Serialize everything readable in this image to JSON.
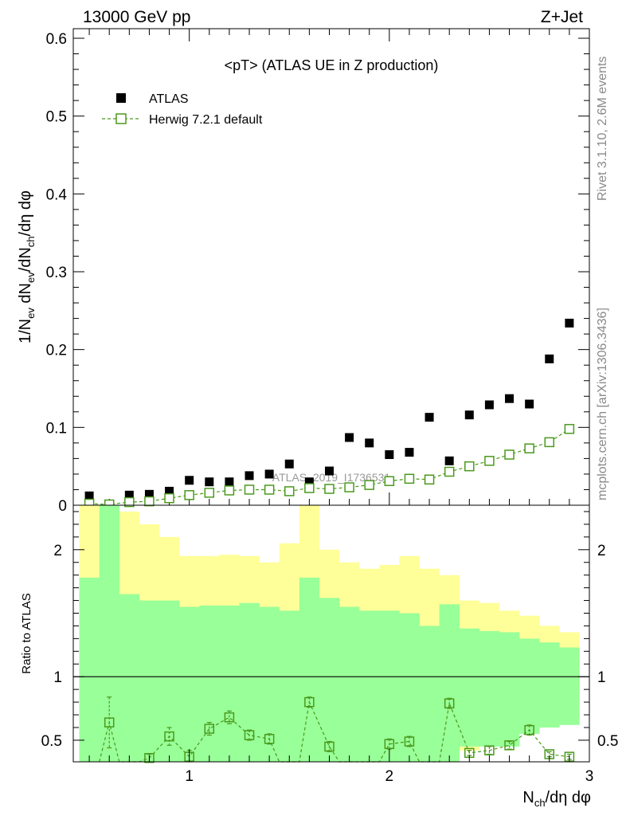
{
  "header": {
    "left": "13000 GeV pp",
    "right": "Z+Jet"
  },
  "side_labels": {
    "rivet": "Rivet 3.1.10,  2.6M events",
    "mcplots": "mcplots.cern.ch [arXiv:1306.3436]"
  },
  "watermark": "ATLAS_2019_I1736531",
  "chart_data": [
    {
      "type": "scatter",
      "title": "<pT> (ATLAS UE in Z production)",
      "ylabel": "1/N_ev dN_ev/dN_ch/dη dφ",
      "xlim": [
        0.42,
        3.0
      ],
      "ylim": [
        0,
        0.6
      ],
      "yticks": [
        0,
        0.1,
        0.2,
        0.3,
        0.4,
        0.5,
        0.6
      ],
      "ytick_labels": [
        "0",
        "0.1",
        "0.2",
        "0.3",
        "0.4",
        "0.5",
        "0.6"
      ],
      "legend_position": "top-left",
      "series": [
        {
          "name": "ATLAS",
          "marker": "filled-square",
          "color": "#000000",
          "x": [
            0.5,
            0.6,
            0.7,
            0.8,
            0.9,
            1.0,
            1.1,
            1.2,
            1.3,
            1.4,
            1.5,
            1.6,
            1.7,
            1.8,
            1.9,
            2.0,
            2.1,
            2.2,
            2.3,
            2.4,
            2.5,
            2.6,
            2.7,
            2.8,
            2.9
          ],
          "y": [
            0.012,
            0.0005,
            0.013,
            0.014,
            0.018,
            0.032,
            0.03,
            0.03,
            0.038,
            0.04,
            0.053,
            0.03,
            0.044,
            0.087,
            0.08,
            0.065,
            0.068,
            0.113,
            0.057,
            0.116,
            0.129,
            0.137,
            0.13,
            0.188,
            0.234
          ]
        },
        {
          "name": "Herwig 7.2.1 default",
          "marker": "open-square",
          "line": "dashed",
          "color": "#4a9a1c",
          "x": [
            0.5,
            0.6,
            0.7,
            0.8,
            0.9,
            1.0,
            1.1,
            1.2,
            1.3,
            1.4,
            1.5,
            1.6,
            1.7,
            1.8,
            1.9,
            2.0,
            2.1,
            2.2,
            2.3,
            2.4,
            2.5,
            2.6,
            2.7,
            2.8,
            2.9
          ],
          "y": [
            0.002,
            0.001,
            0.004,
            0.005,
            0.009,
            0.013,
            0.016,
            0.019,
            0.02,
            0.02,
            0.018,
            0.022,
            0.021,
            0.023,
            0.026,
            0.031,
            0.034,
            0.033,
            0.043,
            0.05,
            0.057,
            0.065,
            0.073,
            0.081,
            0.098
          ]
        }
      ]
    },
    {
      "type": "scatter",
      "ylabel": "Ratio to ATLAS",
      "xlabel": "N_ch/dη dφ",
      "xlim": [
        0.42,
        3.0
      ],
      "ylim": [
        0.33,
        2.35
      ],
      "xticks": [
        1,
        2,
        3
      ],
      "xtick_labels": [
        "1",
        "2",
        "3"
      ],
      "yticks": [
        0.5,
        1,
        2
      ],
      "ytick_labels": [
        "0.5",
        "1",
        "2"
      ],
      "bands": {
        "bin_edges": [
          0.45,
          0.55,
          0.65,
          0.75,
          0.85,
          0.95,
          1.05,
          1.15,
          1.25,
          1.35,
          1.45,
          1.55,
          1.65,
          1.75,
          1.85,
          1.95,
          2.05,
          2.15,
          2.25,
          2.35,
          2.45,
          2.55,
          2.65,
          2.75,
          2.85,
          2.95
        ],
        "stat": {
          "color": "#99ff99",
          "upper": [
            1.78,
            2.35,
            1.65,
            1.6,
            1.6,
            1.55,
            1.56,
            1.56,
            1.58,
            1.55,
            1.52,
            1.78,
            1.62,
            1.55,
            1.52,
            1.52,
            1.5,
            1.4,
            1.57,
            1.38,
            1.36,
            1.35,
            1.3,
            1.27,
            1.23
          ],
          "lower": [
            0.33,
            0.33,
            0.33,
            0.33,
            0.33,
            0.33,
            0.33,
            0.33,
            0.33,
            0.33,
            0.33,
            0.33,
            0.33,
            0.33,
            0.33,
            0.33,
            0.33,
            0.33,
            0.33,
            0.45,
            0.45,
            0.45,
            0.55,
            0.6,
            0.62
          ]
        },
        "total": {
          "color": "#ffff99",
          "upper": [
            2.35,
            2.35,
            2.3,
            2.2,
            2.1,
            1.95,
            1.95,
            1.96,
            1.95,
            1.9,
            2.05,
            2.35,
            2.0,
            1.9,
            1.85,
            1.88,
            1.95,
            1.85,
            1.8,
            1.6,
            1.58,
            1.52,
            1.48,
            1.4,
            1.35
          ],
          "lower": [
            0.33,
            0.33,
            0.33,
            0.33,
            0.33,
            0.55,
            0.52,
            0.52,
            0.4,
            0.33,
            0.33,
            0.33,
            0.33,
            0.66,
            0.5,
            0.45,
            0.44,
            0.62,
            0.33,
            0.42,
            0.8,
            0.78,
            0.75,
            0.85,
            0.88
          ]
        }
      },
      "series": [
        {
          "name": "Herwig 7.2.1 default",
          "marker": "open-square",
          "line": "dashed",
          "color": "#4a9a1c",
          "x": [
            0.6,
            0.8,
            0.9,
            1.0,
            1.1,
            1.2,
            1.3,
            1.4,
            1.6,
            1.7,
            2.0,
            2.1,
            2.3,
            2.4,
            2.5,
            2.6,
            2.7,
            2.8,
            2.9
          ],
          "y": [
            0.64,
            0.36,
            0.53,
            0.37,
            0.59,
            0.68,
            0.54,
            0.51,
            0.8,
            0.45,
            0.47,
            0.49,
            0.79,
            0.4,
            0.42,
            0.46,
            0.58,
            0.39,
            0.37
          ],
          "err": [
            0.2,
            0.03,
            0.07,
            0.05,
            0.05,
            0.05,
            0.04,
            0.04,
            0.04,
            0.04,
            0.04,
            0.04,
            0.04,
            0.02,
            0.03,
            0.03,
            0.04,
            0.02,
            0.02
          ]
        }
      ]
    }
  ]
}
